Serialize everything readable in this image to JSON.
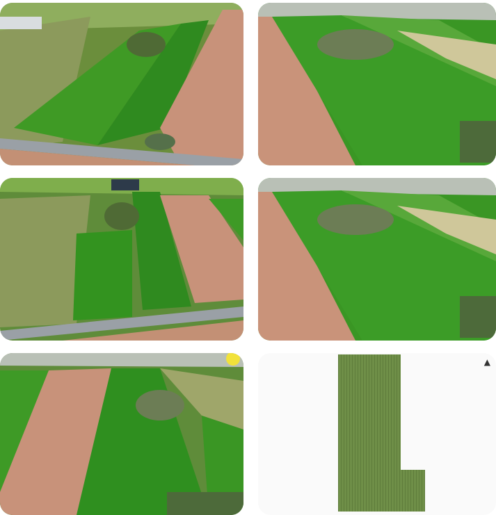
{
  "gallery": {
    "tiles": [
      {
        "label": "aerial-photo",
        "kind": "photo"
      },
      {
        "label": "aerial-photo",
        "kind": "photo"
      },
      {
        "label": "aerial-photo",
        "kind": "photo"
      },
      {
        "label": "aerial-photo",
        "kind": "photo"
      },
      {
        "label": "aerial-photo",
        "kind": "photo"
      },
      {
        "label": "field-plan",
        "kind": "plan"
      }
    ],
    "plan": {
      "north_arrow": "▲",
      "field_color": "#6f8f48"
    }
  },
  "colors": {
    "grass": "#3e9a26",
    "grass_dark": "#2c7a1a",
    "soil": "#c9937a",
    "soil_light": "#d6a98f",
    "road": "#9aa0a6",
    "vineyard": "#8f9a5a"
  }
}
